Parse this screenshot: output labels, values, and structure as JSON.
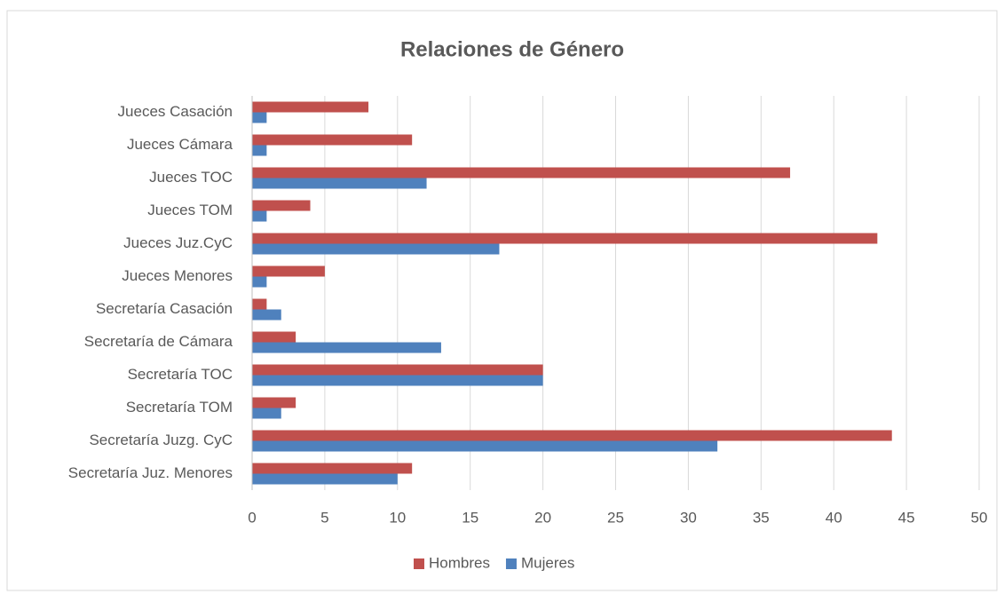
{
  "chart_data": {
    "type": "bar",
    "orientation": "horizontal",
    "title": "Relaciones de Género",
    "categories": [
      "Jueces Casación",
      "Jueces Cámara",
      "Jueces TOC",
      "Jueces TOM",
      "Jueces Juz.CyC",
      "Jueces Menores",
      "Secretaría Casación",
      "Secretaría de Cámara",
      "Secretaría TOC",
      "Secretaría TOM",
      "Secretaría Juzg. CyC",
      "Secretaría Juz. Menores"
    ],
    "series": [
      {
        "name": "Hombres",
        "color": "#c0504d",
        "values": [
          8,
          11,
          37,
          4,
          43,
          5,
          1,
          3,
          20,
          3,
          44,
          11
        ]
      },
      {
        "name": "Mujeres",
        "color": "#4f81bd",
        "values": [
          1,
          1,
          12,
          1,
          17,
          1,
          2,
          13,
          20,
          2,
          32,
          10
        ]
      }
    ],
    "xlim": [
      0,
      50
    ],
    "xticks": [
      0,
      5,
      10,
      15,
      20,
      25,
      30,
      35,
      40,
      45,
      50
    ],
    "grid": true,
    "legend": "bottom"
  }
}
